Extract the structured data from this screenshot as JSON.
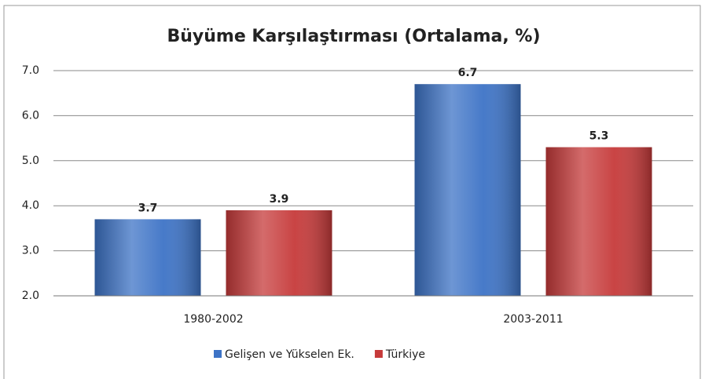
{
  "chart_data": {
    "type": "bar",
    "title": "Büyüme Karşılaştırması (Ortalama, %)",
    "categories": [
      "1980-2002",
      "2003-2011"
    ],
    "series": [
      {
        "name": "Gelişen ve Yükselen Ek.",
        "color": "#3d73c6",
        "values": [
          3.7,
          6.7
        ]
      },
      {
        "name": "Türkiye",
        "color": "#c63a3a",
        "values": [
          3.9,
          5.3
        ]
      }
    ],
    "ylim": [
      2,
      7
    ],
    "yticks": [
      {
        "value": 2,
        "label": "2.0"
      },
      {
        "value": 3,
        "label": "3.0"
      },
      {
        "value": 4,
        "label": "4.0"
      },
      {
        "value": 5,
        "label": "5.0"
      },
      {
        "value": 6,
        "label": "6.0"
      },
      {
        "value": 7,
        "label": "7.0"
      }
    ],
    "grid": true,
    "legend": "bottom"
  }
}
